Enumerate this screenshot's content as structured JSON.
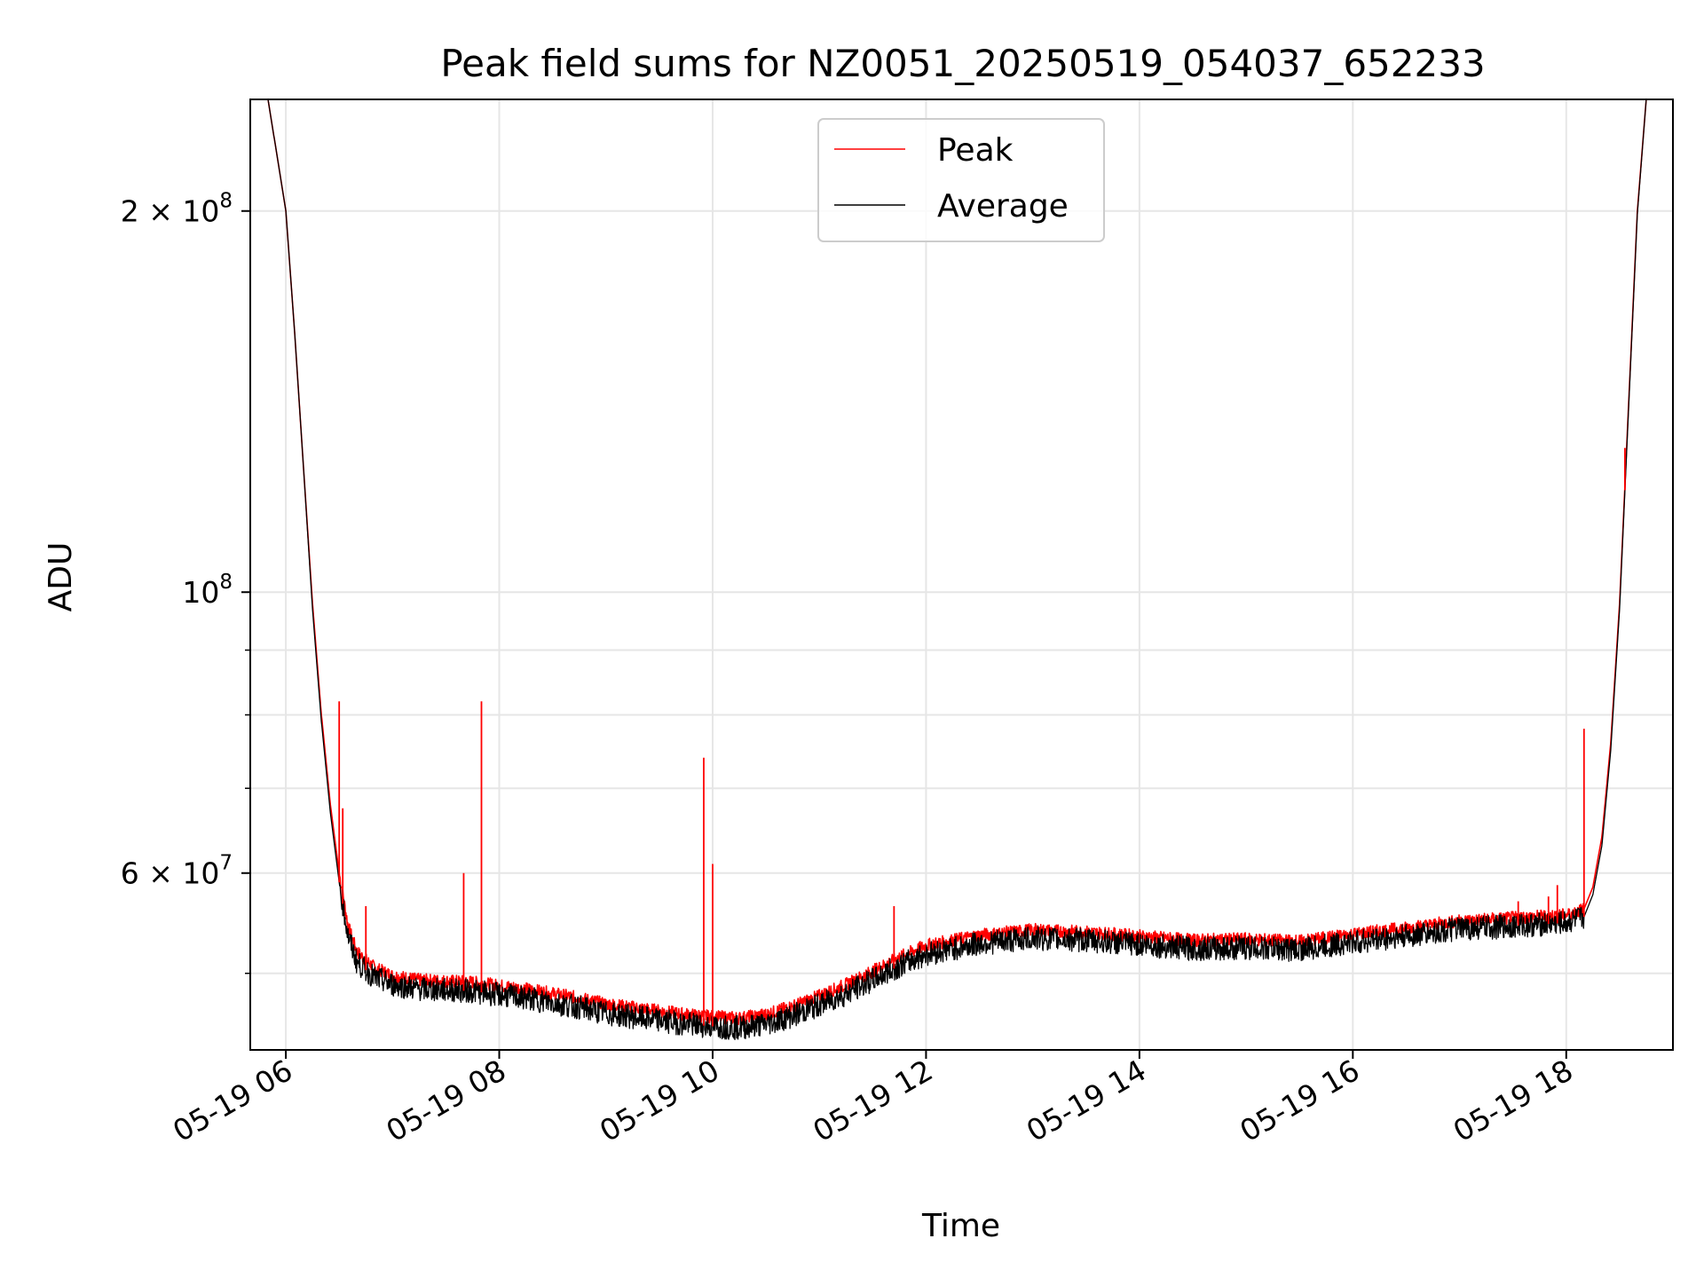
{
  "chart_data": {
    "type": "line",
    "title": "Peak field sums for NZ0051_20250519_054037_652233",
    "xlabel": "Time",
    "ylabel": "ADU",
    "y_scale": "log",
    "grid": true,
    "legend_position": "upper center",
    "x_range": [
      "05-19 05:40",
      "05-19 19:00"
    ],
    "ylim": [
      43500000,
      245000000
    ],
    "x_ticks": [
      "05-19 06",
      "05-19 08",
      "05-19 10",
      "05-19 12",
      "05-19 14",
      "05-19 16",
      "05-19 18"
    ],
    "y_ticks": [
      {
        "value": 200000000,
        "base": "2 × 10",
        "exp": "8"
      },
      {
        "value": 100000000,
        "base": "10",
        "exp": "8"
      },
      {
        "value": 60000000,
        "base": "6 × 10",
        "exp": "7"
      }
    ],
    "y_minor_ticks": [
      50000000,
      70000000,
      80000000,
      90000000
    ],
    "series": [
      {
        "name": "Peak",
        "color": "#ff0000",
        "x": [
          "05-19 05:40",
          "05-19 05:50",
          "05-19 06:00",
          "05-19 06:05",
          "05-19 06:10",
          "05-19 06:15",
          "05-19 06:20",
          "05-19 06:25",
          "05-19 06:30",
          "05-19 06:35",
          "05-19 06:40",
          "05-19 06:50",
          "05-19 07:00",
          "05-19 07:15",
          "05-19 07:30",
          "05-19 07:45",
          "05-19 08:00",
          "05-19 08:15",
          "05-19 08:30",
          "05-19 08:45",
          "05-19 09:00",
          "05-19 09:15",
          "05-19 09:30",
          "05-19 09:45",
          "05-19 10:00",
          "05-19 10:15",
          "05-19 10:30",
          "05-19 10:45",
          "05-19 11:00",
          "05-19 11:15",
          "05-19 11:30",
          "05-19 11:45",
          "05-19 12:00",
          "05-19 12:30",
          "05-19 13:00",
          "05-19 13:30",
          "05-19 14:00",
          "05-19 14:30",
          "05-19 15:00",
          "05-19 15:30",
          "05-19 16:00",
          "05-19 16:30",
          "05-19 17:00",
          "05-19 17:30",
          "05-19 17:50",
          "05-19 18:00",
          "05-19 18:10",
          "05-19 18:15",
          "05-19 18:20",
          "05-19 18:25",
          "05-19 18:30",
          "05-19 18:35",
          "05-19 18:40",
          "05-19 18:45",
          "05-19 19:00"
        ],
        "y": [
          245000000,
          245000000,
          200000000,
          160000000,
          125000000,
          98000000,
          80000000,
          68000000,
          60000000,
          54500000,
          52000000,
          50500000,
          49800000,
          49400000,
          49300000,
          49200000,
          48900000,
          48600000,
          48200000,
          47800000,
          47300000,
          47000000,
          46700000,
          46400000,
          46200000,
          46100000,
          46400000,
          47100000,
          48000000,
          49000000,
          50200000,
          51500000,
          52600000,
          53600000,
          54100000,
          53900000,
          53500000,
          53100000,
          53200000,
          53000000,
          53700000,
          54300000,
          55000000,
          55300000,
          55500000,
          55600000,
          56200000,
          58500000,
          64000000,
          76000000,
          98000000,
          140000000,
          200000000,
          245000000,
          245000000
        ]
      },
      {
        "name": "Average",
        "color": "#000000",
        "x": [
          "05-19 05:40",
          "05-19 05:50",
          "05-19 06:00",
          "05-19 06:05",
          "05-19 06:10",
          "05-19 06:15",
          "05-19 06:20",
          "05-19 06:25",
          "05-19 06:30",
          "05-19 06:35",
          "05-19 06:40",
          "05-19 06:50",
          "05-19 07:00",
          "05-19 07:15",
          "05-19 07:30",
          "05-19 07:45",
          "05-19 08:00",
          "05-19 08:15",
          "05-19 08:30",
          "05-19 08:45",
          "05-19 09:00",
          "05-19 09:15",
          "05-19 09:30",
          "05-19 09:45",
          "05-19 10:00",
          "05-19 10:15",
          "05-19 10:30",
          "05-19 10:45",
          "05-19 11:00",
          "05-19 11:15",
          "05-19 11:30",
          "05-19 11:45",
          "05-19 12:00",
          "05-19 12:30",
          "05-19 13:00",
          "05-19 13:30",
          "05-19 14:00",
          "05-19 14:30",
          "05-19 15:00",
          "05-19 15:30",
          "05-19 16:00",
          "05-19 16:30",
          "05-19 17:00",
          "05-19 17:30",
          "05-19 17:50",
          "05-19 18:00",
          "05-19 18:10",
          "05-19 18:15",
          "05-19 18:20",
          "05-19 18:25",
          "05-19 18:30",
          "05-19 18:35",
          "05-19 18:40",
          "05-19 18:45",
          "05-19 19:00"
        ],
        "y": [
          245000000,
          245000000,
          200000000,
          160000000,
          125000000,
          97000000,
          79000000,
          67000000,
          59000000,
          53500000,
          51000000,
          49600000,
          49000000,
          48600000,
          48500000,
          48400000,
          48100000,
          47800000,
          47400000,
          47000000,
          46500000,
          46200000,
          45900000,
          45600000,
          45400000,
          45300000,
          45600000,
          46300000,
          47200000,
          48200000,
          49400000,
          50700000,
          51800000,
          52800000,
          53300000,
          53100000,
          52700000,
          52300000,
          52400000,
          52200000,
          52900000,
          53500000,
          54200000,
          54500000,
          54700000,
          54800000,
          55400000,
          57700000,
          63000000,
          75000000,
          97000000,
          139000000,
          199000000,
          245000000,
          245000000
        ]
      }
    ],
    "spikes": [
      {
        "x": "05-19 06:30",
        "y": 82000000
      },
      {
        "x": "05-19 06:32",
        "y": 67500000
      },
      {
        "x": "05-19 06:45",
        "y": 56500000
      },
      {
        "x": "05-19 07:40",
        "y": 60000000
      },
      {
        "x": "05-19 07:50",
        "y": 82000000
      },
      {
        "x": "05-19 09:55",
        "y": 74000000
      },
      {
        "x": "05-19 10:00",
        "y": 61000000
      },
      {
        "x": "05-19 11:42",
        "y": 56500000
      },
      {
        "x": "05-19 17:33",
        "y": 57000000
      },
      {
        "x": "05-19 17:50",
        "y": 57500000
      },
      {
        "x": "05-19 17:55",
        "y": 58700000
      },
      {
        "x": "05-19 18:10",
        "y": 78000000
      },
      {
        "x": "05-19 18:33",
        "y": 130000000
      }
    ]
  }
}
